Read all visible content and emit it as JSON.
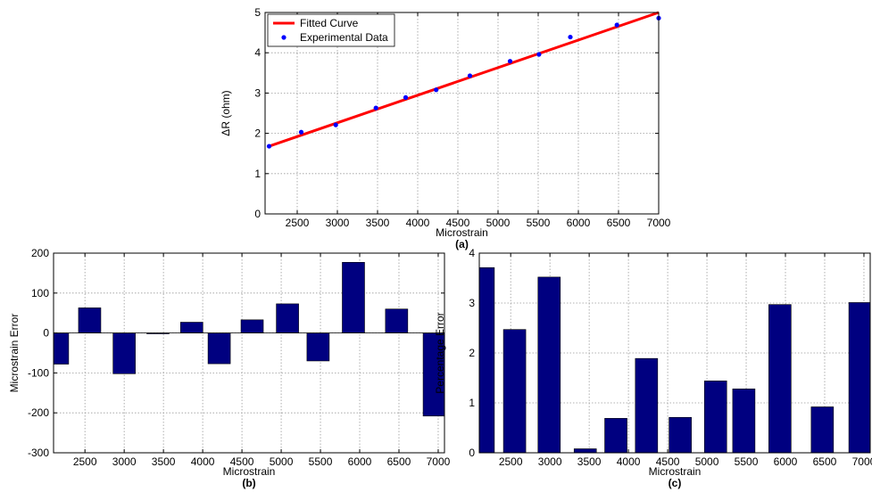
{
  "chart_data": [
    {
      "id": "a",
      "type": "line+scatter",
      "caption": "(a)",
      "xlabel": "Microstrain",
      "ylabel": "ΔR (ohm)",
      "xlim": [
        2100,
        7000
      ],
      "ylim": [
        0,
        5
      ],
      "xticks": [
        2500,
        3000,
        3500,
        4000,
        4500,
        5000,
        5500,
        6000,
        6500,
        7000
      ],
      "yticks": [
        0,
        1,
        2,
        3,
        4,
        5
      ],
      "grid": true,
      "legend_position": "top-left",
      "series": [
        {
          "name": "Fitted Curve",
          "kind": "line",
          "color": "#ff0000",
          "x": [
            2150,
            7000
          ],
          "y": [
            1.68,
            5.0
          ]
        },
        {
          "name": "Experimental Data",
          "kind": "scatter",
          "color": "#0000ff",
          "x": [
            2150,
            2550,
            2980,
            3480,
            3850,
            4230,
            4650,
            5150,
            5510,
            5900,
            6480,
            7000
          ],
          "y": [
            1.68,
            2.03,
            2.21,
            2.63,
            2.89,
            3.08,
            3.43,
            3.79,
            3.96,
            4.39,
            4.69,
            4.86
          ]
        }
      ]
    },
    {
      "id": "b",
      "type": "bar",
      "caption": "(b)",
      "xlabel": "Microstrain",
      "ylabel": "Microstrain Error",
      "xlim": [
        2100,
        7080
      ],
      "ylim": [
        -300,
        200
      ],
      "xticks": [
        2500,
        3000,
        3500,
        4000,
        4500,
        5000,
        5500,
        6000,
        6500,
        7000
      ],
      "yticks": [
        -300,
        -200,
        -100,
        0,
        100,
        200
      ],
      "grid": true,
      "bar_color": "#000080",
      "x": [
        2150,
        2560,
        3000,
        3430,
        3860,
        4210,
        4630,
        5080,
        5470,
        5920,
        6470,
        6950
      ],
      "values": [
        -78,
        63,
        -102,
        -2,
        27,
        -77,
        33,
        73,
        -70,
        177,
        60,
        -208
      ]
    },
    {
      "id": "c",
      "type": "bar",
      "caption": "(c)",
      "xlabel": "Microstrain",
      "ylabel": "Percentage Error",
      "xlim": [
        2100,
        7080
      ],
      "ylim": [
        0,
        4
      ],
      "xticks": [
        2500,
        3000,
        3500,
        4000,
        4500,
        5000,
        5500,
        6000,
        6500,
        7000
      ],
      "yticks": [
        0,
        1,
        2,
        3,
        4
      ],
      "grid": true,
      "bar_color": "#000080",
      "x": [
        2150,
        2550,
        2990,
        3450,
        3840,
        4230,
        4660,
        5110,
        5470,
        5930,
        6470,
        6950
      ],
      "values": [
        3.71,
        2.47,
        3.52,
        0.08,
        0.69,
        1.89,
        0.71,
        1.44,
        1.28,
        2.97,
        0.92,
        3.01
      ]
    }
  ]
}
